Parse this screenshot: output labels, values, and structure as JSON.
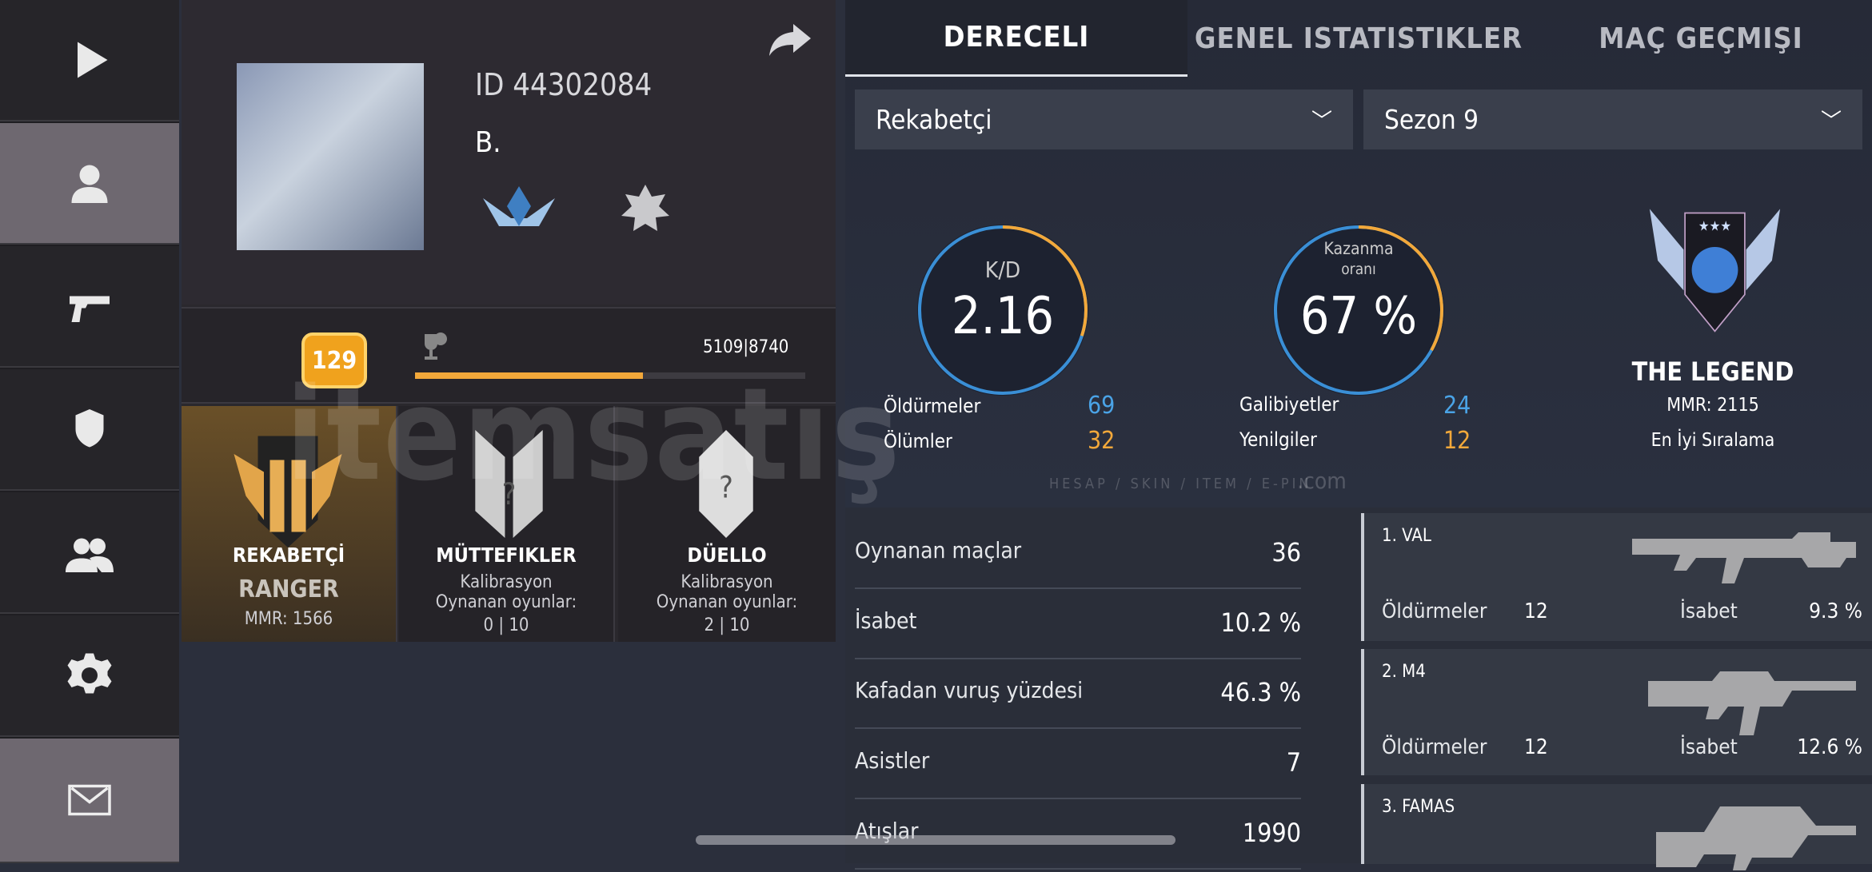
{
  "nav": {
    "items": [
      {
        "icon": "play-icon"
      },
      {
        "icon": "user-icon",
        "active": true
      },
      {
        "icon": "pistol-icon"
      },
      {
        "icon": "shield-icon"
      },
      {
        "icon": "group-icon"
      },
      {
        "icon": "gear-icon"
      },
      {
        "icon": "mail-icon",
        "active": true
      }
    ]
  },
  "profile": {
    "id": "ID 44302084",
    "name": "B.",
    "level": "129",
    "xp": "5109|8740",
    "xp_progress": 0.585,
    "modes": [
      {
        "title": "REKABETÇİ",
        "rank": "RANGER",
        "mmr": "MMR: 1566"
      },
      {
        "title": "MÜTTEFIKLER",
        "line1": "Kalibrasyon",
        "line2": "Oynanan oyunlar:",
        "progress": "0 | 10"
      },
      {
        "title": "DÜELLO",
        "line1": "Kalibrasyon",
        "line2": "Oynanan oyunlar:",
        "progress": "2 | 10"
      }
    ]
  },
  "tabs": [
    {
      "label": "DERECELI",
      "active": true
    },
    {
      "label": "GENEL ISTATISTIKLER"
    },
    {
      "label": "MAÇ GEÇMIŞI"
    }
  ],
  "filters": {
    "mode": "Rekabetçi",
    "season": "Sezon 9"
  },
  "kd": {
    "label": "K/D",
    "value": "2.16",
    "fraction": 0.3
  },
  "winrate": {
    "label1": "Kazanma",
    "label2": "oranı",
    "value": "67 %",
    "fraction": 0.33
  },
  "counts": {
    "kills_label": "Öldürmeler",
    "kills": "69",
    "deaths_label": "Ölümler",
    "deaths": "32",
    "wins_label": "Galibiyetler",
    "wins": "24",
    "losses_label": "Yenilgiler",
    "losses": "12"
  },
  "rank": {
    "name": "THE LEGEND",
    "mmr": "MMR: 2115",
    "note": "En İyi Sıralama"
  },
  "stats": [
    {
      "k": "Oynanan maçlar",
      "v": "36"
    },
    {
      "k": "İsabet",
      "v": "10.2 %"
    },
    {
      "k": "Kafadan vuruş yüzdesi",
      "v": "46.3 %"
    },
    {
      "k": "Asistler",
      "v": "7"
    },
    {
      "k": "Atışlar",
      "v": "1990"
    }
  ],
  "weapons": [
    {
      "name": "1. VAL",
      "kills_label": "Öldürmeler",
      "kills": "12",
      "acc_label": "İsabet",
      "acc": "9.3 %"
    },
    {
      "name": "2. M4",
      "kills_label": "Öldürmeler",
      "kills": "12",
      "acc_label": "İsabet",
      "acc": "12.6 %"
    },
    {
      "name": "3. FAMAS"
    }
  ],
  "watermark": {
    "brand": "itemsatış",
    "tagline": "HESAP / SKIN / ITEM / E-PIN",
    "suffix": ".com"
  },
  "colors": {
    "blue": "#4aa3e6",
    "orange": "#f2a83a"
  }
}
